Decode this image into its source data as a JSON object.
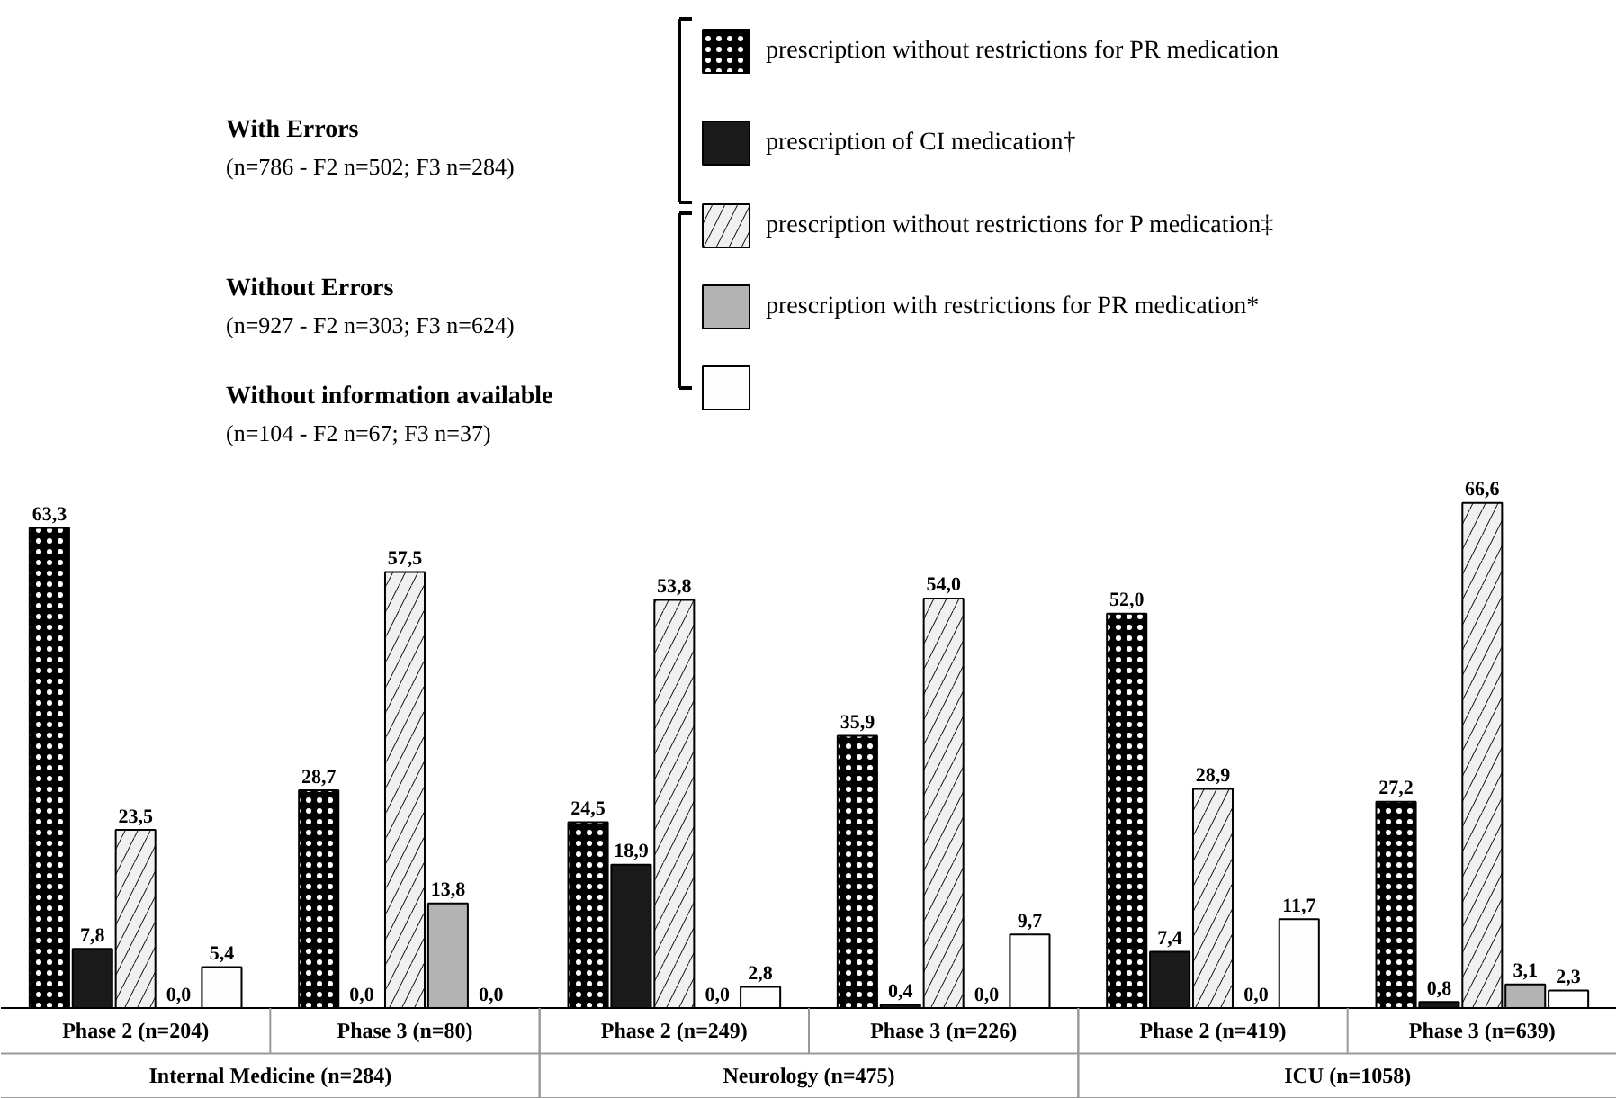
{
  "chart_data": {
    "type": "bar",
    "categories": [
      "Phase 2 (n=204)",
      "Phase 3 (n=80)",
      "Phase 2 (n=249)",
      "Phase 3 (n=226)",
      "Phase 2 (n=419)",
      "Phase 3 (n=639)"
    ],
    "series": [
      {
        "name": "prescription without restrictions for PR medication",
        "color": "#000000",
        "values": [
          63.3,
          28.7,
          24.5,
          35.9,
          52.0,
          27.2
        ],
        "value_labels": [
          "63,3",
          "28,7",
          "24,5",
          "35,9",
          "52,0",
          "27,2"
        ]
      },
      {
        "name": "prescription of CI medication†",
        "color": "#1a1a1a",
        "values": [
          7.8,
          0.0,
          18.9,
          0.4,
          7.4,
          0.8
        ],
        "value_labels": [
          "7,8",
          "0,0",
          "18,9",
          "0,4",
          "7,4",
          "0,8"
        ]
      },
      {
        "name": "prescription without restrictions for P medication‡",
        "color": "#f0f0f0",
        "values": [
          23.5,
          57.5,
          53.8,
          54.0,
          28.9,
          66.6
        ],
        "value_labels": [
          "23,5",
          "57,5",
          "53,8",
          "54,0",
          "28,9",
          "66,6"
        ]
      },
      {
        "name": "prescription with restrictions for PR medication*",
        "color": "#b3b3b3",
        "values": [
          0.0,
          13.8,
          0.0,
          0.0,
          0.0,
          3.1
        ],
        "value_labels": [
          "0,0",
          "13,8",
          "0,0",
          "0,0",
          "0,0",
          "3,1"
        ]
      },
      {
        "color": "#fefefe",
        "values": [
          5.4,
          0.0,
          2.8,
          9.7,
          11.7,
          2.3
        ],
        "value_labels": [
          "5,4",
          "0,0",
          "2,8",
          "9,7",
          "11,7",
          "2,3"
        ]
      }
    ],
    "annotations": [
      "With Errors",
      "(n=786 - F2 n=502; F3 n=284)",
      "Without Errors",
      "(n=927 - F2 n=303; F3 n=624)",
      "Without information available",
      "(n=104 - F2 n=67; F3 n=37)",
      "Internal Medicine (n=284)",
      "Neurology (n=475)",
      "ICU (n=1058)"
    ],
    "legend": "top",
    "grid": false
  }
}
